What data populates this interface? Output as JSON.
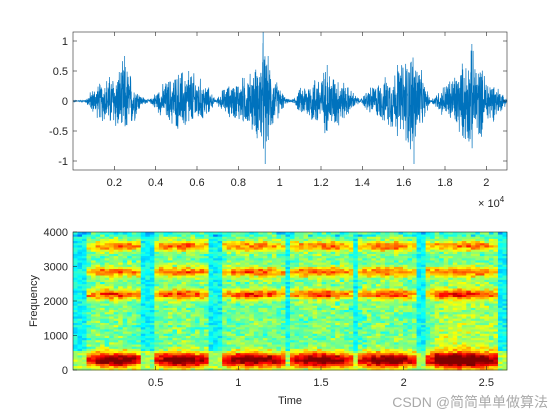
{
  "chart_data": [
    {
      "type": "line",
      "title": "",
      "xlabel": "",
      "ylabel": "",
      "x_exponent_label": "× 10",
      "x_exponent_power": "4",
      "xlim": [
        0,
        21000
      ],
      "ylim": [
        -1.15,
        1.15
      ],
      "x_ticks": [
        2000,
        4000,
        6000,
        8000,
        10000,
        12000,
        14000,
        16000,
        18000,
        20000
      ],
      "x_tick_labels": [
        "0.2",
        "0.4",
        "0.6",
        "0.8",
        "1",
        "1.2",
        "1.4",
        "1.6",
        "1.8",
        "2"
      ],
      "y_ticks": [
        -1,
        -0.5,
        0,
        0.5,
        1
      ],
      "y_tick_labels": [
        "-1",
        "-0.5",
        "0",
        "0.5",
        "1"
      ],
      "series_color": "#0072bd",
      "envelope": [
        {
          "x": 0,
          "amp": 0.01
        },
        {
          "x": 600,
          "amp": 0.02
        },
        {
          "x": 900,
          "amp": 0.22
        },
        {
          "x": 1600,
          "amp": 0.45
        },
        {
          "x": 2200,
          "amp": 0.6
        },
        {
          "x": 2500,
          "amp": 0.75
        },
        {
          "x": 2900,
          "amp": 0.45
        },
        {
          "x": 3300,
          "amp": 0.1
        },
        {
          "x": 3700,
          "amp": 0.02
        },
        {
          "x": 4100,
          "amp": 0.22
        },
        {
          "x": 4700,
          "amp": 0.45
        },
        {
          "x": 5300,
          "amp": 0.6
        },
        {
          "x": 5800,
          "amp": 0.55
        },
        {
          "x": 6500,
          "amp": 0.3
        },
        {
          "x": 6900,
          "amp": 0.02
        },
        {
          "x": 7300,
          "amp": 0.25
        },
        {
          "x": 8000,
          "amp": 0.4
        },
        {
          "x": 8800,
          "amp": 0.6
        },
        {
          "x": 9200,
          "amp": 1.1
        },
        {
          "x": 9700,
          "amp": 0.5
        },
        {
          "x": 10300,
          "amp": 0.05
        },
        {
          "x": 10600,
          "amp": 0.02
        },
        {
          "x": 11000,
          "amp": 0.25
        },
        {
          "x": 11600,
          "amp": 0.45
        },
        {
          "x": 12200,
          "amp": 0.6
        },
        {
          "x": 12800,
          "amp": 0.5
        },
        {
          "x": 13600,
          "amp": 0.15
        },
        {
          "x": 13900,
          "amp": 0.02
        },
        {
          "x": 14300,
          "amp": 0.25
        },
        {
          "x": 15000,
          "amp": 0.4
        },
        {
          "x": 15600,
          "amp": 0.6
        },
        {
          "x": 16500,
          "amp": 1.05
        },
        {
          "x": 17000,
          "amp": 0.35
        },
        {
          "x": 17300,
          "amp": 0.02
        },
        {
          "x": 17700,
          "amp": 0.2
        },
        {
          "x": 18400,
          "amp": 0.5
        },
        {
          "x": 19300,
          "amp": 0.95
        },
        {
          "x": 19900,
          "amp": 0.55
        },
        {
          "x": 20500,
          "amp": 0.3
        },
        {
          "x": 21000,
          "amp": 0.05
        }
      ],
      "peaks": [
        {
          "x": 9200,
          "y": 1.15
        },
        {
          "x": 9300,
          "y": -1.05
        },
        {
          "x": 16500,
          "y": -1.05
        },
        {
          "x": 19300,
          "y": 0.95
        },
        {
          "x": 2500,
          "y": 0.75
        },
        {
          "x": 5600,
          "y": 0.5
        },
        {
          "x": 12300,
          "y": 0.6
        },
        {
          "x": 15700,
          "y": 0.6
        }
      ]
    },
    {
      "type": "heatmap",
      "title": "",
      "xlabel": "Time",
      "ylabel": "Frequency",
      "xlim": [
        0,
        2.625
      ],
      "ylim": [
        0,
        4000
      ],
      "x_ticks": [
        0.5,
        1,
        1.5,
        2,
        2.5
      ],
      "x_tick_labels": [
        "0.5",
        "1",
        "1.5",
        "2",
        "2.5"
      ],
      "y_ticks": [
        0,
        1000,
        2000,
        3000,
        4000
      ],
      "y_tick_labels": [
        "0",
        "1000",
        "2000",
        "3000",
        "4000"
      ],
      "colormap": "jet",
      "segments": [
        {
          "start": 0.09,
          "end": 0.42
        },
        {
          "start": 0.49,
          "end": 0.83
        },
        {
          "start": 0.9,
          "end": 1.28
        },
        {
          "start": 1.31,
          "end": 1.69
        },
        {
          "start": 1.73,
          "end": 2.08
        },
        {
          "start": 2.12,
          "end": 2.58
        }
      ],
      "formant_bands": [
        {
          "freq": 300,
          "intensity": 1.0
        },
        {
          "freq": 2200,
          "intensity": 0.62
        },
        {
          "freq": 2850,
          "intensity": 0.55
        },
        {
          "freq": 3600,
          "intensity": 0.5
        }
      ]
    }
  ],
  "watermark": "CSDN @简简单单做算法"
}
